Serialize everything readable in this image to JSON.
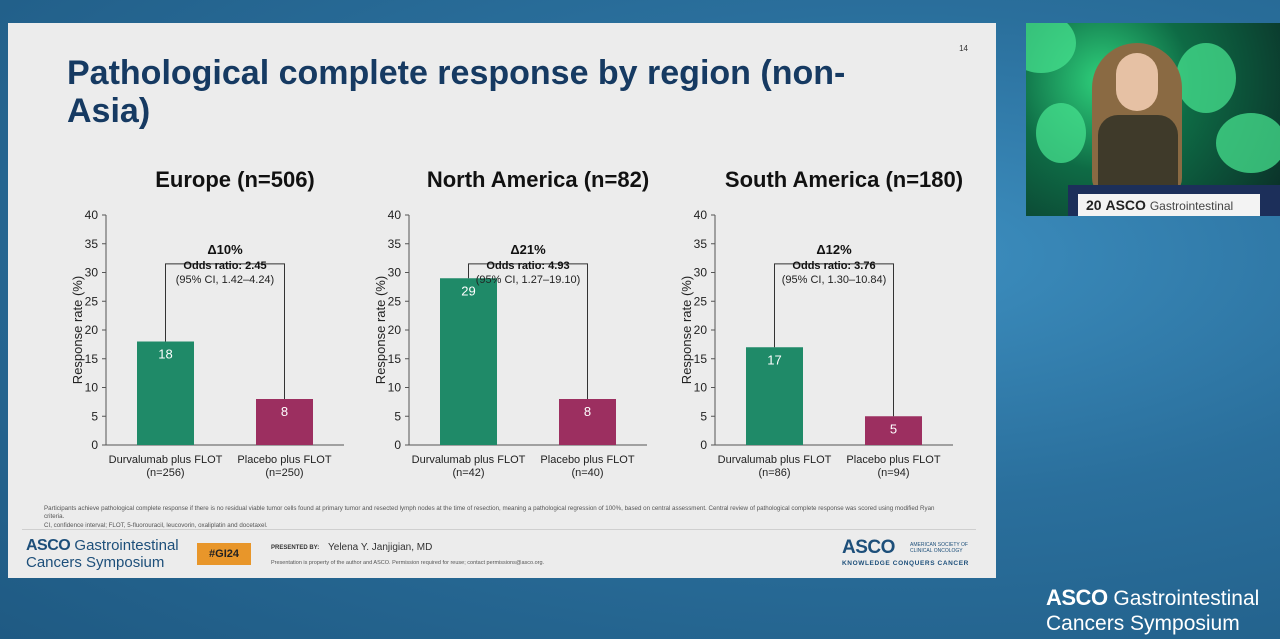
{
  "slide": {
    "number": "14",
    "title": "Pathological complete response by region (non-Asia)"
  },
  "chart_data": [
    {
      "type": "bar",
      "title": "Europe (n=506)",
      "ylabel": "Response rate (%)",
      "ylim": [
        0,
        40
      ],
      "yticks": [
        "0",
        "5",
        "10",
        "15",
        "20",
        "25",
        "30",
        "35",
        "40"
      ],
      "categories": [
        {
          "line1": "Durvalumab plus FLOT",
          "line2": "(n=256)"
        },
        {
          "line1": "Placebo plus FLOT",
          "line2": "(n=250)"
        }
      ],
      "values": [
        18,
        8
      ],
      "value_labels": [
        "18",
        "8"
      ],
      "colors": [
        "#1f8a68",
        "#9c2f60"
      ],
      "annotation": {
        "delta": "Δ10%",
        "odds": "Odds ratio: 2.45",
        "ci": "(95% CI, 1.42–4.24)"
      }
    },
    {
      "type": "bar",
      "title": "North America (n=82)",
      "ylabel": "Response rate (%)",
      "ylim": [
        0,
        40
      ],
      "yticks": [
        "0",
        "5",
        "10",
        "15",
        "20",
        "25",
        "30",
        "35",
        "40"
      ],
      "categories": [
        {
          "line1": "Durvalumab plus FLOT",
          "line2": "(n=42)"
        },
        {
          "line1": "Placebo plus FLOT",
          "line2": "(n=40)"
        }
      ],
      "values": [
        29,
        8
      ],
      "value_labels": [
        "29",
        "8"
      ],
      "colors": [
        "#1f8a68",
        "#9c2f60"
      ],
      "annotation": {
        "delta": "Δ21%",
        "odds": "Odds ratio: 4.93",
        "ci": "(95% CI, 1.27–19.10)"
      }
    },
    {
      "type": "bar",
      "title": "South America (n=180)",
      "ylabel": "Response rate (%)",
      "ylim": [
        0,
        40
      ],
      "yticks": [
        "0",
        "5",
        "10",
        "15",
        "20",
        "25",
        "30",
        "35",
        "40"
      ],
      "categories": [
        {
          "line1": "Durvalumab plus FLOT",
          "line2": "(n=86)"
        },
        {
          "line1": "Placebo plus FLOT",
          "line2": "(n=94)"
        }
      ],
      "values": [
        17,
        5
      ],
      "value_labels": [
        "17",
        "5"
      ],
      "colors": [
        "#1f8a68",
        "#9c2f60"
      ],
      "annotation": {
        "delta": "Δ12%",
        "odds": "Odds ratio: 3.76",
        "ci": "(95% CI, 1.30–10.84)"
      }
    }
  ],
  "footnote": {
    "line1": "Participants achieve pathological complete response if there is no residual viable tumor cells found at primary tumor and resected lymph nodes at the time of resection, meaning a pathological regression of 100%, based on central assessment. Central review of pathological complete response was scored using modified Ryan criteria.",
    "line2": "CI, confidence interval; FLOT, 5-fluorouracil, leucovorin, oxaliplatin and docetaxel."
  },
  "footer": {
    "logo_brand": "ASCO",
    "logo_line1_rest": " Gastrointestinal",
    "logo_line2": "Cancers Symposium",
    "hashtag": "#GI24",
    "presented_by": "PRESENTED BY:",
    "presenter": "Yelena Y. Janjigian, MD",
    "disclaimer": "Presentation is property of the author and ASCO. Permission required for reuse; contact permissions@asco.org.",
    "asco_logo": "ASCO",
    "asco_society": "AMERICAN SOCIETY OF CLINICAL ONCOLOGY",
    "asco_tagline": "KNOWLEDGE CONQUERS CANCER"
  },
  "video": {
    "podium_number": "20",
    "podium_brand": "ASCO",
    "podium_text": "Gastrointestinal"
  },
  "corner_logo": {
    "brand": "ASCO",
    "line1_rest": " Gastrointestinal",
    "line2": "Cancers Symposium"
  }
}
